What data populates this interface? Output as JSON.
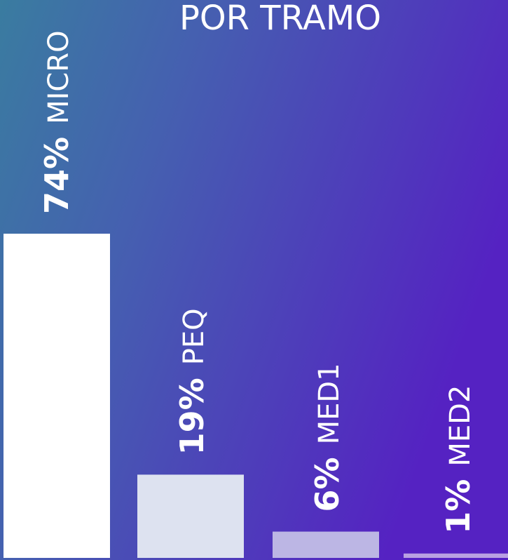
{
  "chart_data": {
    "type": "bar",
    "title": "POR TRAMO",
    "categories": [
      "MICRO",
      "PEQ",
      "MED1",
      "MED2"
    ],
    "values": [
      74,
      19,
      6,
      1
    ],
    "value_labels": [
      "74%",
      "19%",
      "6%",
      "1%"
    ],
    "colors": [
      "#ffffff",
      "#dde2f0",
      "#bcb6e4",
      "#b9a1e2"
    ]
  }
}
